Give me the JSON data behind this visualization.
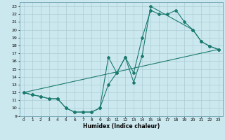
{
  "xlabel": "Humidex (Indice chaleur)",
  "bg_color": "#cce8ef",
  "grid_color": "#aaccd4",
  "line_color": "#1a7a6e",
  "xlim": [
    -0.5,
    23.5
  ],
  "ylim": [
    9,
    23.5
  ],
  "xticks": [
    0,
    1,
    2,
    3,
    4,
    5,
    6,
    7,
    8,
    9,
    10,
    11,
    12,
    13,
    14,
    15,
    16,
    17,
    18,
    19,
    20,
    21,
    22,
    23
  ],
  "yticks": [
    9,
    10,
    11,
    12,
    13,
    14,
    15,
    16,
    17,
    18,
    19,
    20,
    21,
    22,
    23
  ],
  "line1_x": [
    0,
    1,
    2,
    3,
    4,
    5,
    6,
    7,
    8,
    9,
    10,
    11,
    12,
    13,
    14,
    15,
    20,
    21,
    22,
    23
  ],
  "line1_y": [
    12,
    11.7,
    11.5,
    11.2,
    11.2,
    10.0,
    9.5,
    9.5,
    9.5,
    10.0,
    16.5,
    14.5,
    16.5,
    13.3,
    16.7,
    23.0,
    20.0,
    18.5,
    17.9,
    17.5
  ],
  "line2_x": [
    0,
    23
  ],
  "line2_y": [
    12,
    17.5
  ],
  "line3_x": [
    0,
    1,
    2,
    3,
    4,
    5,
    6,
    7,
    8,
    9,
    10,
    11,
    12,
    13,
    14,
    15,
    16,
    17,
    18,
    19,
    20,
    21,
    22,
    23
  ],
  "line3_y": [
    12,
    11.7,
    11.5,
    11.2,
    11.2,
    10.0,
    9.5,
    9.5,
    9.5,
    10.0,
    13.0,
    14.5,
    16.5,
    14.5,
    19.0,
    22.5,
    22.0,
    22.0,
    22.5,
    21.0,
    20.0,
    18.5,
    17.9,
    17.5
  ]
}
